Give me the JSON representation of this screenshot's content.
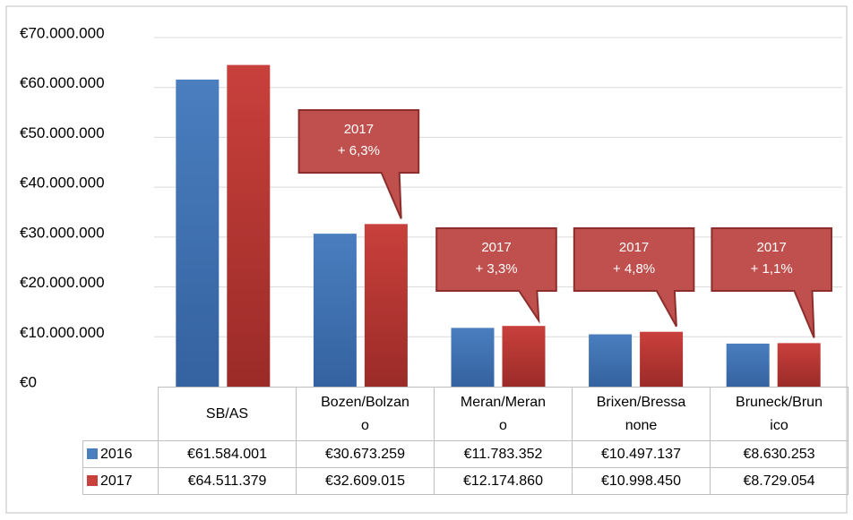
{
  "chart_data": {
    "type": "bar",
    "categories": [
      "SB/AS",
      "Bozen/Bolzano",
      "Meran/Merano",
      "Brixen/Bressanone",
      "Bruneck/Brunico"
    ],
    "series": [
      {
        "name": "2016",
        "color": "#4a7ebf",
        "values": [
          61584001,
          30673259,
          11783352,
          10497137,
          8630253
        ],
        "value_labels": [
          "€61.584.001",
          "€30.673.259",
          "€11.783.352",
          "€10.497.137",
          "€8.630.253"
        ]
      },
      {
        "name": "2017",
        "color": "#c9403c",
        "values": [
          64511379,
          32609015,
          12174860,
          10998450,
          8729054
        ],
        "value_labels": [
          "€64.511.379",
          "€32.609.015",
          "€12.174.860",
          "€10.998.450",
          "€8.729.054"
        ]
      }
    ],
    "ylim": [
      0,
      70000000
    ],
    "yticks": [
      {
        "value": 0,
        "label": "€0"
      },
      {
        "value": 10000000,
        "label": "€10.000.000"
      },
      {
        "value": 20000000,
        "label": "€20.000.000"
      },
      {
        "value": 30000000,
        "label": "€30.000.000"
      },
      {
        "value": 40000000,
        "label": "€40.000.000"
      },
      {
        "value": 50000000,
        "label": "€50.000.000"
      },
      {
        "value": 60000000,
        "label": "€60.000.000"
      },
      {
        "value": 70000000,
        "label": "€70.000.000"
      }
    ],
    "grid": true,
    "annotations": [
      [
        "2017",
        "+ 6,3%"
      ],
      [
        "2017",
        "+ 3,3%"
      ],
      [
        "2017",
        "+ 4,8%"
      ],
      [
        "2017",
        "+ 1,1%"
      ]
    ]
  }
}
